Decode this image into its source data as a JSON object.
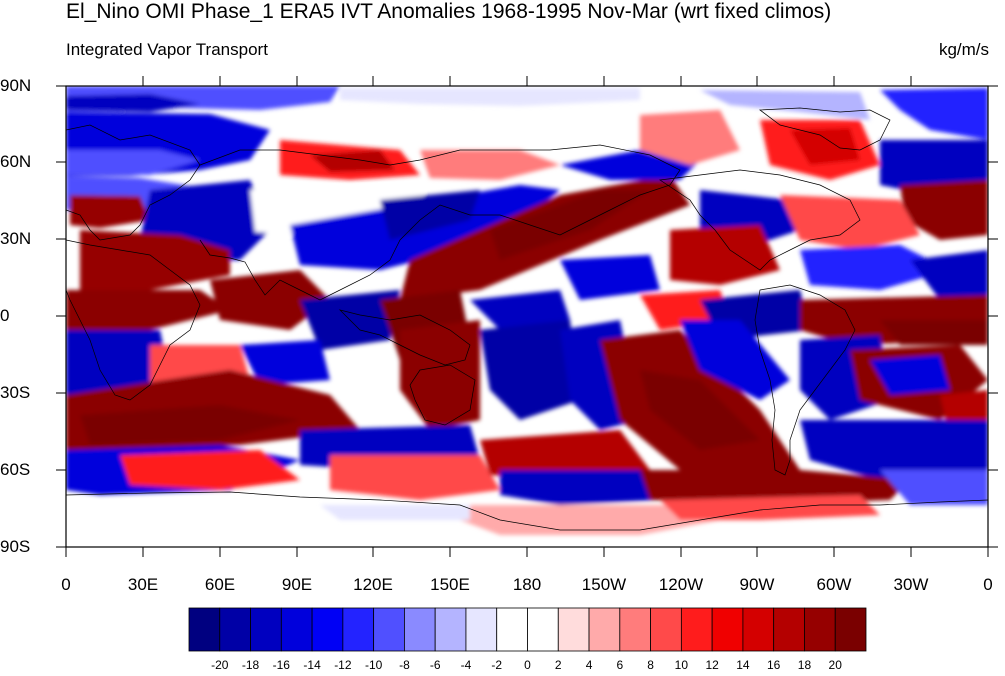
{
  "title": "El_Nino OMI Phase_1 ERA5 IVT Anomalies 1968-1995 Nov-Mar (wrt fixed climos)",
  "subtitle_left": "Integrated Vapor Transport",
  "subtitle_right": "kg/m/s",
  "lat_labels": [
    "90N",
    "60N",
    "30N",
    "0",
    "30S",
    "60S",
    "90S"
  ],
  "lon_labels": [
    "0",
    "30E",
    "60E",
    "90E",
    "120E",
    "150E",
    "180",
    "150W",
    "120W",
    "90W",
    "60W",
    "30W",
    "0"
  ],
  "colorbar": {
    "labels": [
      "-20",
      "-18",
      "-16",
      "-14",
      "-12",
      "-10",
      "-8",
      "-6",
      "-4",
      "-2",
      "0",
      "2",
      "4",
      "6",
      "8",
      "10",
      "12",
      "14",
      "16",
      "18",
      "20"
    ],
    "colors": [
      "#000080",
      "#0000a6",
      "#0000c0",
      "#0000dc",
      "#0000f5",
      "#2323ff",
      "#5050ff",
      "#8a8aff",
      "#b4b4ff",
      "#e6e6ff",
      "#ffffff",
      "#ffffff",
      "#ffdcdc",
      "#ffaaaa",
      "#ff7c7c",
      "#ff4a4a",
      "#ff1c1c",
      "#f00000",
      "#d40000",
      "#b40000",
      "#960000",
      "#7a0000"
    ]
  },
  "colors": {
    "strong_negative": "#000090",
    "strong_positive": "#8b0000",
    "neutral": "#ffffff"
  }
}
